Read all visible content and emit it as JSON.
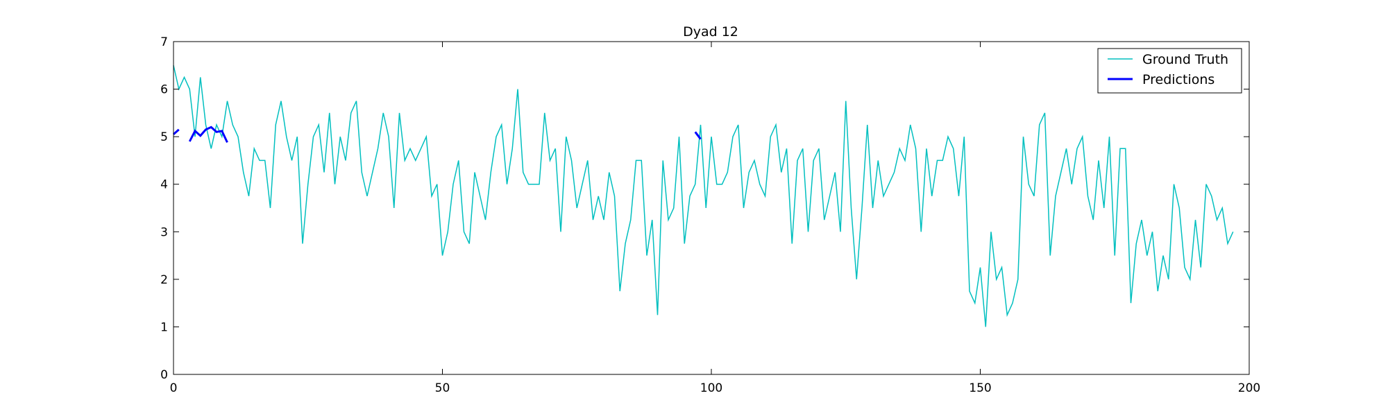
{
  "chart_data": {
    "type": "line",
    "title": "Dyad 12",
    "xlabel": "",
    "ylabel": "",
    "xlim": [
      0,
      200
    ],
    "ylim": [
      0,
      7
    ],
    "x_ticks": [
      0,
      50,
      100,
      150,
      200
    ],
    "y_ticks": [
      0,
      1,
      2,
      3,
      4,
      5,
      6,
      7
    ],
    "grid": false,
    "legend_position": "top-right",
    "series": [
      {
        "name": "Ground Truth",
        "color": "#00bfbf",
        "x_start": 0,
        "values": [
          6.5,
          6.0,
          6.25,
          6.0,
          5.0,
          6.25,
          5.25,
          4.75,
          5.25,
          5.0,
          5.75,
          5.25,
          5.0,
          4.25,
          3.75,
          4.75,
          4.5,
          4.5,
          3.5,
          5.25,
          5.75,
          5.0,
          4.5,
          5.0,
          2.75,
          4.0,
          5.0,
          5.25,
          4.25,
          5.5,
          4.0,
          5.0,
          4.5,
          5.5,
          5.75,
          4.25,
          3.75,
          4.25,
          4.75,
          5.5,
          5.0,
          3.5,
          5.5,
          4.5,
          4.75,
          4.5,
          4.75,
          5.0,
          3.75,
          4.0,
          2.5,
          3.0,
          4.0,
          4.5,
          3.0,
          2.75,
          4.25,
          3.75,
          3.25,
          4.25,
          5.0,
          5.25,
          4.0,
          4.75,
          6.0,
          4.25,
          4.0,
          4.0,
          4.0,
          5.5,
          4.5,
          4.75,
          3.0,
          5.0,
          4.5,
          3.5,
          4.0,
          4.5,
          3.25,
          3.75,
          3.25,
          4.25,
          3.75,
          1.75,
          2.75,
          3.25,
          4.5,
          4.5,
          2.5,
          3.25,
          1.25,
          4.5,
          3.25,
          3.5,
          5.0,
          2.75,
          3.75,
          4.0,
          5.25,
          3.5,
          5.0,
          4.0,
          4.0,
          4.25,
          5.0,
          5.25,
          3.5,
          4.25,
          4.5,
          4.0,
          3.75,
          5.0,
          5.25,
          4.25,
          4.75,
          2.75,
          4.5,
          4.75,
          3.0,
          4.5,
          4.75,
          3.25,
          3.75,
          4.25,
          3.0,
          5.75,
          3.5,
          2.0,
          3.5,
          5.25,
          3.5,
          4.5,
          3.75,
          4.0,
          4.25,
          4.75,
          4.5,
          5.25,
          4.75,
          3.0,
          4.75,
          3.75,
          4.5,
          4.5,
          5.0,
          4.75,
          3.75,
          5.0,
          1.75,
          1.5,
          2.25,
          1.0,
          3.0,
          2.0,
          2.25,
          1.25,
          1.5,
          2.0,
          5.0,
          4.0,
          3.75,
          5.25,
          5.5,
          2.5,
          3.75,
          4.25,
          4.75,
          4.0,
          4.75,
          5.0,
          3.75,
          3.25,
          4.5,
          3.5,
          5.0,
          2.5,
          4.75,
          4.75,
          1.5,
          2.75,
          3.25,
          2.5,
          3.0,
          1.75,
          2.5,
          2.0,
          4.0,
          3.5,
          2.25,
          2.0,
          3.25,
          2.25,
          4.0,
          3.75,
          3.25,
          3.5,
          2.75,
          3.0
        ]
      },
      {
        "name": "Predictions",
        "color": "#0000ff",
        "segments": [
          {
            "x": [
              0,
              1
            ],
            "values": [
              5.05,
              5.15
            ]
          },
          {
            "x": [
              3,
              4,
              5,
              6,
              7,
              8,
              9,
              10
            ],
            "values": [
              4.9,
              5.12,
              5.02,
              5.15,
              5.2,
              5.1,
              5.12,
              4.88
            ]
          },
          {
            "x": [
              97,
              98
            ],
            "values": [
              5.1,
              4.95
            ]
          }
        ]
      }
    ]
  }
}
